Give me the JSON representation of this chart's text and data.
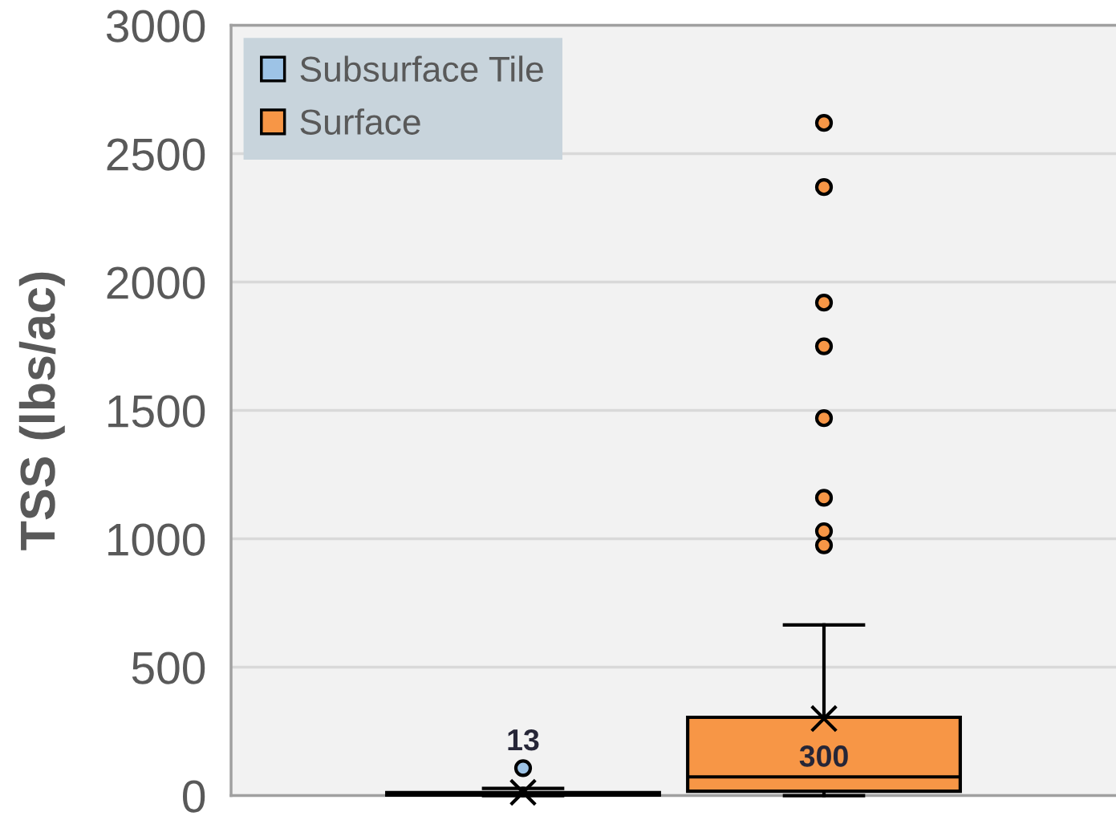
{
  "chart_data": {
    "type": "box",
    "ylabel": "TSS (lbs/ac)",
    "categories": [
      null
    ],
    "series": [
      {
        "name": "Subsurface Tile",
        "color": "#9dc3e6",
        "boxes": [
          {
            "low": 0,
            "q1": 2,
            "median": 6,
            "q3": 12,
            "high": 28,
            "mean": 13,
            "outliers": [
              107
            ]
          }
        ],
        "value_labels": [
          "13"
        ]
      },
      {
        "name": "Surface",
        "color": "#f79646",
        "boxes": [
          {
            "low": 0,
            "q1": 17,
            "median": 73,
            "q3": 305,
            "high": 665,
            "mean": 300,
            "outliers": [
              975,
              1030,
              1160,
              1470,
              1750,
              1920,
              2370,
              2620
            ]
          }
        ],
        "value_labels": [
          "300"
        ]
      }
    ],
    "ylim": [
      0,
      3000
    ],
    "yticks": [
      0,
      500,
      1000,
      1500,
      2000,
      2500,
      3000
    ],
    "grid": "y",
    "legend": "top left",
    "tick_labels": "y"
  }
}
